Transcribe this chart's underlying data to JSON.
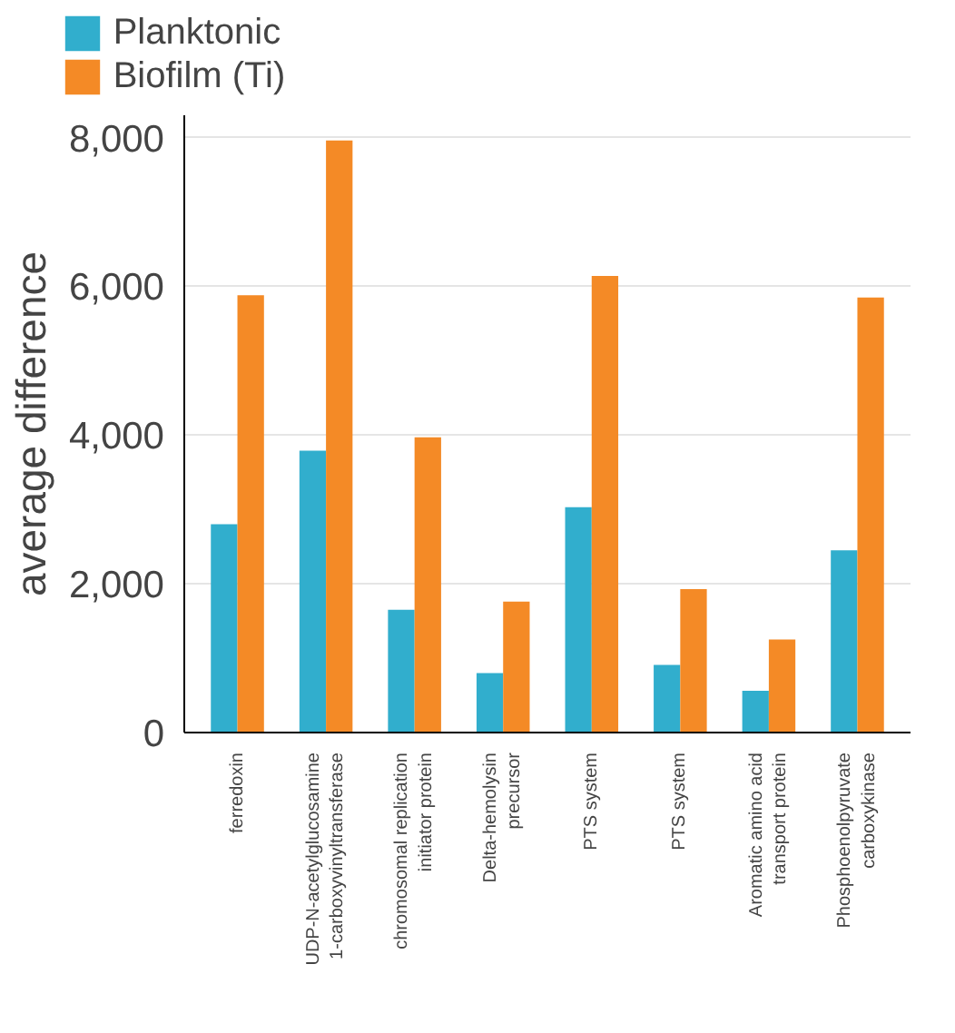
{
  "chart_data": {
    "type": "bar",
    "ylabel": "average difference",
    "categories": [
      "ferredoxin",
      "UDP-N-acetylglucosamine\n1-carboxyvinyltransferase",
      "chromosomal replication\ninitiator protein",
      "Delta-hemolysin\nprecursor",
      "PTS system",
      "PTS system",
      "Aromatic amino acid\ntransport protein",
      "Phosphoenolpyruvate\ncarboxykinase"
    ],
    "series": [
      {
        "name": "Planktonic",
        "color": "#31aecd",
        "values": [
          2800,
          3790,
          1650,
          800,
          3030,
          910,
          560,
          2450
        ]
      },
      {
        "name": "Biofilm (Ti)",
        "color": "#f48a26",
        "values": [
          5880,
          7960,
          3970,
          1760,
          6140,
          1930,
          1250,
          5850
        ]
      }
    ],
    "ylim": [
      0,
      8300
    ],
    "yticks": [
      {
        "value": 0,
        "label": "0"
      },
      {
        "value": 2000,
        "label": "2,000"
      },
      {
        "value": 4000,
        "label": "4,000"
      },
      {
        "value": 6000,
        "label": "6,000"
      },
      {
        "value": 8000,
        "label": "8,000"
      }
    ],
    "grid": "y",
    "legend": "top left"
  }
}
